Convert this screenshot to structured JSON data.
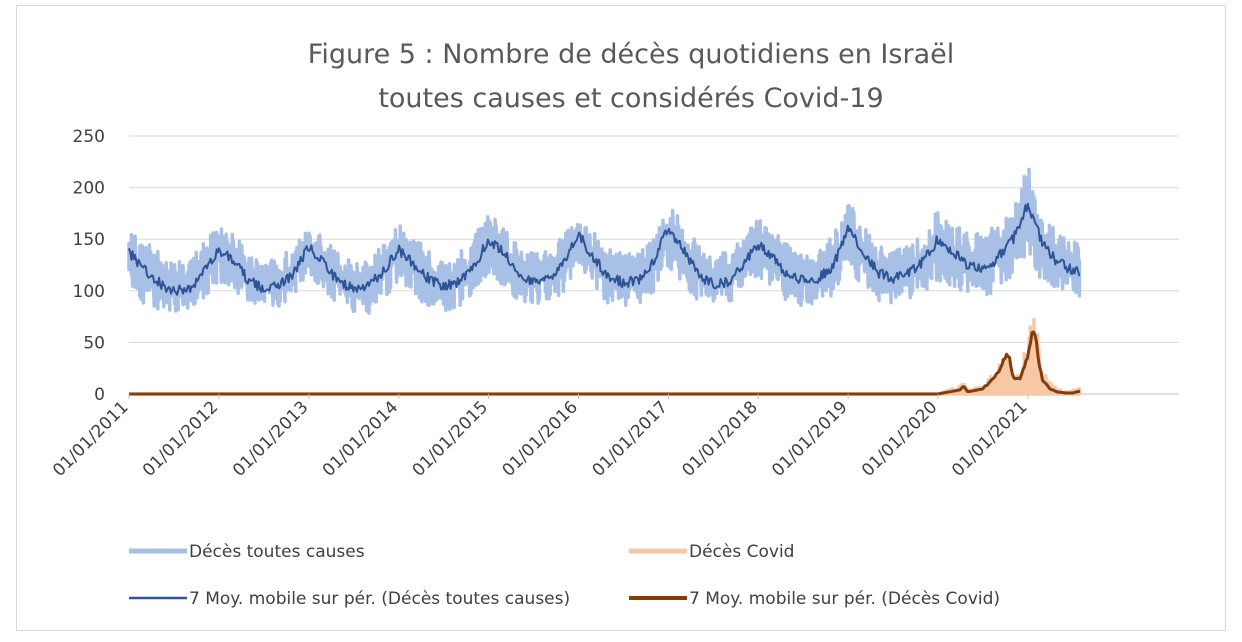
{
  "chart_data": {
    "type": "line",
    "title": [
      "Figure 5 : Nombre de décès quotidiens en Israël",
      "toutes causes et considérés Covid-19"
    ],
    "xlabel": "",
    "ylabel": "",
    "ylim": [
      0,
      250
    ],
    "yticks": [
      "0",
      "50",
      "100",
      "150",
      "200",
      "250"
    ],
    "x_tick_labels": [
      "01/01/2011",
      "01/01/2012",
      "01/01/2013",
      "01/01/2014",
      "01/01/2015",
      "01/01/2016",
      "01/01/2017",
      "01/01/2018",
      "01/01/2019",
      "01/01/2020",
      "01/01/2021"
    ],
    "x_range": [
      "01/01/2011",
      "01/08/2021"
    ],
    "grid": "horizontal",
    "legend_placement": "bottom",
    "series": [
      {
        "name": "Décès toutes causes",
        "color": "#a9c0e6",
        "description_points": {
          "x": [
            "01/01/2011",
            "01/03/2011",
            "01/05/2011",
            "01/07/2011",
            "01/09/2011",
            "01/11/2011",
            "01/01/2012",
            "01/03/2012",
            "01/05/2012",
            "01/07/2012",
            "01/09/2012",
            "01/11/2012",
            "01/01/2013",
            "01/03/2013",
            "01/05/2013",
            "01/07/2013",
            "01/09/2013",
            "01/11/2013",
            "01/01/2014",
            "01/03/2014",
            "01/05/2014",
            "01/07/2014",
            "01/09/2014",
            "01/11/2014",
            "01/01/2015",
            "01/03/2015",
            "01/05/2015",
            "01/07/2015",
            "01/09/2015",
            "01/11/2015",
            "01/01/2016",
            "01/03/2016",
            "01/05/2016",
            "01/07/2016",
            "01/09/2016",
            "01/11/2016",
            "01/01/2017",
            "01/03/2017",
            "01/05/2017",
            "01/07/2017",
            "01/09/2017",
            "01/11/2017",
            "01/01/2018",
            "01/03/2018",
            "01/05/2018",
            "01/07/2018",
            "01/09/2018",
            "01/11/2018",
            "01/01/2019",
            "01/03/2019",
            "01/05/2019",
            "01/07/2019",
            "01/09/2019",
            "01/11/2019",
            "01/01/2020",
            "01/03/2020",
            "01/05/2020",
            "01/07/2020",
            "01/09/2020",
            "01/11/2020",
            "01/01/2021",
            "01/03/2021",
            "01/05/2021",
            "01/07/2021",
            "01/08/2021"
          ],
          "y_center": [
            137,
            122,
            108,
            100,
            102,
            118,
            140,
            130,
            110,
            102,
            104,
            118,
            142,
            128,
            108,
            102,
            104,
            120,
            140,
            126,
            112,
            104,
            108,
            122,
            150,
            138,
            116,
            110,
            112,
            126,
            155,
            132,
            114,
            108,
            110,
            128,
            162,
            140,
            116,
            106,
            108,
            126,
            145,
            132,
            114,
            110,
            112,
            124,
            160,
            140,
            118,
            112,
            116,
            128,
            150,
            138,
            125,
            120,
            132,
            150,
            185,
            145,
            128,
            120,
            118
          ],
          "y_min": [
            100,
            88,
            80,
            78,
            82,
            92,
            110,
            98,
            86,
            82,
            84,
            94,
            110,
            96,
            82,
            76,
            78,
            92,
            108,
            96,
            84,
            80,
            84,
            96,
            116,
            104,
            90,
            86,
            88,
            98,
            120,
            102,
            88,
            84,
            86,
            98,
            124,
            106,
            90,
            86,
            88,
            100,
            114,
            102,
            88,
            84,
            86,
            96,
            122,
            104,
            90,
            86,
            88,
            98,
            110,
            100,
            96,
            94,
            100,
            112,
            140,
            106,
            98,
            92,
            90
          ],
          "y_max": [
            160,
            150,
            138,
            128,
            130,
            148,
            162,
            156,
            138,
            128,
            132,
            146,
            160,
            152,
            136,
            128,
            130,
            150,
            168,
            152,
            140,
            134,
            138,
            152,
            176,
            166,
            144,
            138,
            140,
            156,
            166,
            158,
            142,
            136,
            138,
            154,
            186,
            166,
            146,
            136,
            138,
            154,
            172,
            160,
            144,
            138,
            140,
            154,
            186,
            168,
            146,
            140,
            144,
            158,
            178,
            166,
            158,
            156,
            166,
            178,
            226,
            176,
            156,
            148,
            150
          ]
        }
      },
      {
        "name": "Décès Covid",
        "color": "#f7c8a6",
        "description_points": {
          "x": [
            "01/01/2020",
            "01/04/2020",
            "15/04/2020",
            "01/05/2020",
            "01/07/2020",
            "01/08/2020",
            "01/09/2020",
            "01/10/2020",
            "15/10/2020",
            "01/11/2020",
            "01/12/2020",
            "01/01/2021",
            "20/01/2021",
            "01/02/2021",
            "15/02/2021",
            "01/03/2021",
            "01/04/2021",
            "01/05/2021",
            "01/06/2021",
            "01/07/2021",
            "01/08/2021"
          ],
          "y_max": [
            0,
            8,
            14,
            4,
            8,
            18,
            28,
            48,
            52,
            24,
            18,
            62,
            102,
            88,
            50,
            26,
            12,
            6,
            2,
            3,
            8
          ]
        }
      },
      {
        "name": "7 Moy. mobile sur pér. (Décès toutes causes)",
        "color": "#2f5496"
      },
      {
        "name": "7 Moy. mobile sur pér. (Décès Covid)",
        "color": "#843c0c",
        "points": {
          "x": [
            "01/01/2011",
            "01/01/2020",
            "01/04/2020",
            "15/04/2020",
            "01/05/2020",
            "01/07/2020",
            "01/08/2020",
            "01/09/2020",
            "01/10/2020",
            "15/10/2020",
            "01/11/2020",
            "01/12/2020",
            "01/01/2021",
            "20/01/2021",
            "01/02/2021",
            "15/02/2021",
            "01/03/2021",
            "01/04/2021",
            "01/05/2021",
            "01/06/2021",
            "01/07/2021",
            "01/08/2021"
          ],
          "y": [
            0,
            0,
            4,
            8,
            2,
            5,
            12,
            20,
            36,
            38,
            16,
            14,
            38,
            64,
            54,
            30,
            14,
            5,
            2,
            1,
            1,
            3
          ]
        }
      }
    ]
  }
}
